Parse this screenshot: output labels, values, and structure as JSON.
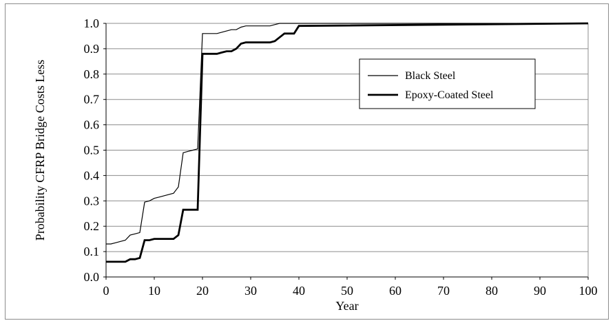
{
  "chart_data": {
    "type": "line",
    "title": "",
    "xlabel": "Year",
    "ylabel": "Probability CFRP Bridge Costs Less",
    "xlim": [
      0,
      100
    ],
    "ylim": [
      0,
      1.0
    ],
    "x_ticks": [
      0,
      10,
      20,
      30,
      40,
      50,
      60,
      70,
      80,
      90,
      100
    ],
    "x_tick_labels": [
      "0",
      "10",
      "20",
      "30",
      "40",
      "50",
      "60",
      "70",
      "80",
      "90",
      "100"
    ],
    "y_ticks": [
      0,
      0.1,
      0.2,
      0.3,
      0.4,
      0.5,
      0.6,
      0.7,
      0.8,
      0.9,
      1.0
    ],
    "y_tick_labels": [
      "0.0",
      "0.1",
      "0.2",
      "0.3",
      "0.4",
      "0.5",
      "0.6",
      "0.7",
      "0.8",
      "0.9",
      "1.0"
    ],
    "grid": "horizontal",
    "legend_position": "upper-right",
    "series": [
      {
        "name": "Black Steel",
        "color": "#000000",
        "style": "thin",
        "x": [
          0,
          1,
          2,
          3,
          4,
          5,
          6,
          7,
          8,
          9,
          10,
          11,
          12,
          13,
          14,
          15,
          16,
          17,
          18,
          19,
          20,
          21,
          22,
          23,
          24,
          25,
          26,
          27,
          28,
          29,
          30,
          31,
          32,
          33,
          34,
          35,
          36,
          37,
          38,
          39,
          40,
          100
        ],
        "y": [
          0.13,
          0.13,
          0.135,
          0.14,
          0.145,
          0.165,
          0.17,
          0.175,
          0.295,
          0.3,
          0.31,
          0.315,
          0.32,
          0.325,
          0.33,
          0.355,
          0.49,
          0.495,
          0.5,
          0.505,
          0.96,
          0.96,
          0.96,
          0.96,
          0.965,
          0.97,
          0.975,
          0.975,
          0.985,
          0.99,
          0.99,
          0.99,
          0.99,
          0.99,
          0.99,
          0.995,
          1.0,
          1.0,
          1.0,
          1.0,
          1.0,
          1.0
        ]
      },
      {
        "name": "Epoxy-Coated Steel",
        "color": "#000000",
        "style": "thick",
        "x": [
          0,
          4,
          5,
          6,
          7,
          8,
          9,
          10,
          11,
          12,
          13,
          14,
          15,
          16,
          17,
          18,
          19,
          20,
          21,
          22,
          23,
          24,
          25,
          26,
          27,
          28,
          29,
          30,
          31,
          32,
          33,
          34,
          35,
          36,
          37,
          38,
          39,
          40,
          100
        ],
        "y": [
          0.06,
          0.06,
          0.07,
          0.07,
          0.075,
          0.145,
          0.145,
          0.15,
          0.15,
          0.15,
          0.15,
          0.15,
          0.165,
          0.265,
          0.265,
          0.265,
          0.265,
          0.88,
          0.88,
          0.88,
          0.88,
          0.885,
          0.89,
          0.89,
          0.9,
          0.92,
          0.925,
          0.925,
          0.925,
          0.925,
          0.925,
          0.925,
          0.93,
          0.945,
          0.96,
          0.96,
          0.96,
          0.99,
          1.0
        ]
      }
    ]
  }
}
